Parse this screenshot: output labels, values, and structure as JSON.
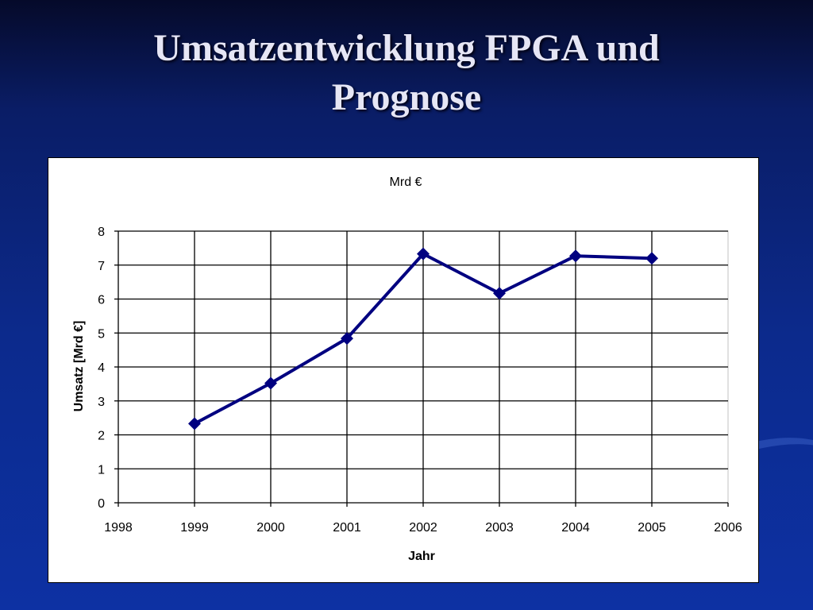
{
  "slide": {
    "title_line1": "Umsatzentwicklung FPGA und",
    "title_line2": "Prognose"
  },
  "colors": {
    "background": "#0c2a8c",
    "series": "#000080",
    "grid": "#000000"
  },
  "chart_data": {
    "type": "line",
    "title": "Mrd €",
    "xlabel": "Jahr",
    "ylabel": "Umsatz [Mrd €]",
    "xlim": [
      1998,
      2006
    ],
    "ylim": [
      0,
      8
    ],
    "x_ticks": [
      1998,
      1999,
      2000,
      2001,
      2002,
      2003,
      2004,
      2005,
      2006
    ],
    "y_ticks": [
      0,
      1,
      2,
      3,
      4,
      5,
      6,
      7,
      8
    ],
    "grid": true,
    "marker": "diamond",
    "series": [
      {
        "x": [
          1999,
          2000,
          2001,
          2002,
          2003,
          2004,
          2005
        ],
        "y": [
          2.33,
          3.52,
          4.84,
          7.33,
          6.17,
          7.27,
          7.2
        ]
      }
    ]
  }
}
